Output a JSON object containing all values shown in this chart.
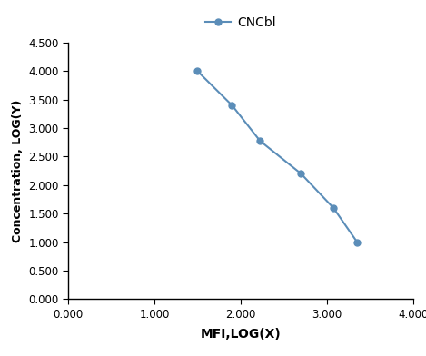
{
  "x": [
    1.5,
    1.9,
    2.225,
    2.7,
    3.075,
    3.35
  ],
  "y": [
    4.0,
    3.4,
    2.775,
    2.2,
    1.6,
    1.0
  ],
  "line_color": "#5B8DB8",
  "marker": "o",
  "marker_size": 5,
  "line_width": 1.5,
  "legend_label": "CNCbl",
  "xlabel": "MFI,LOG(X)",
  "ylabel": "Concentration, LOG(Y)",
  "xlim": [
    0.0,
    4.0
  ],
  "ylim": [
    0.0,
    4.5
  ],
  "xticks": [
    0.0,
    1.0,
    2.0,
    3.0,
    4.0
  ],
  "yticks": [
    0.0,
    0.5,
    1.0,
    1.5,
    2.0,
    2.5,
    3.0,
    3.5,
    4.0,
    4.5
  ],
  "background_color": "#ffffff",
  "xlabel_fontsize": 10,
  "ylabel_fontsize": 9,
  "tick_fontsize": 8.5,
  "legend_fontsize": 10,
  "spine_color": "#000000"
}
